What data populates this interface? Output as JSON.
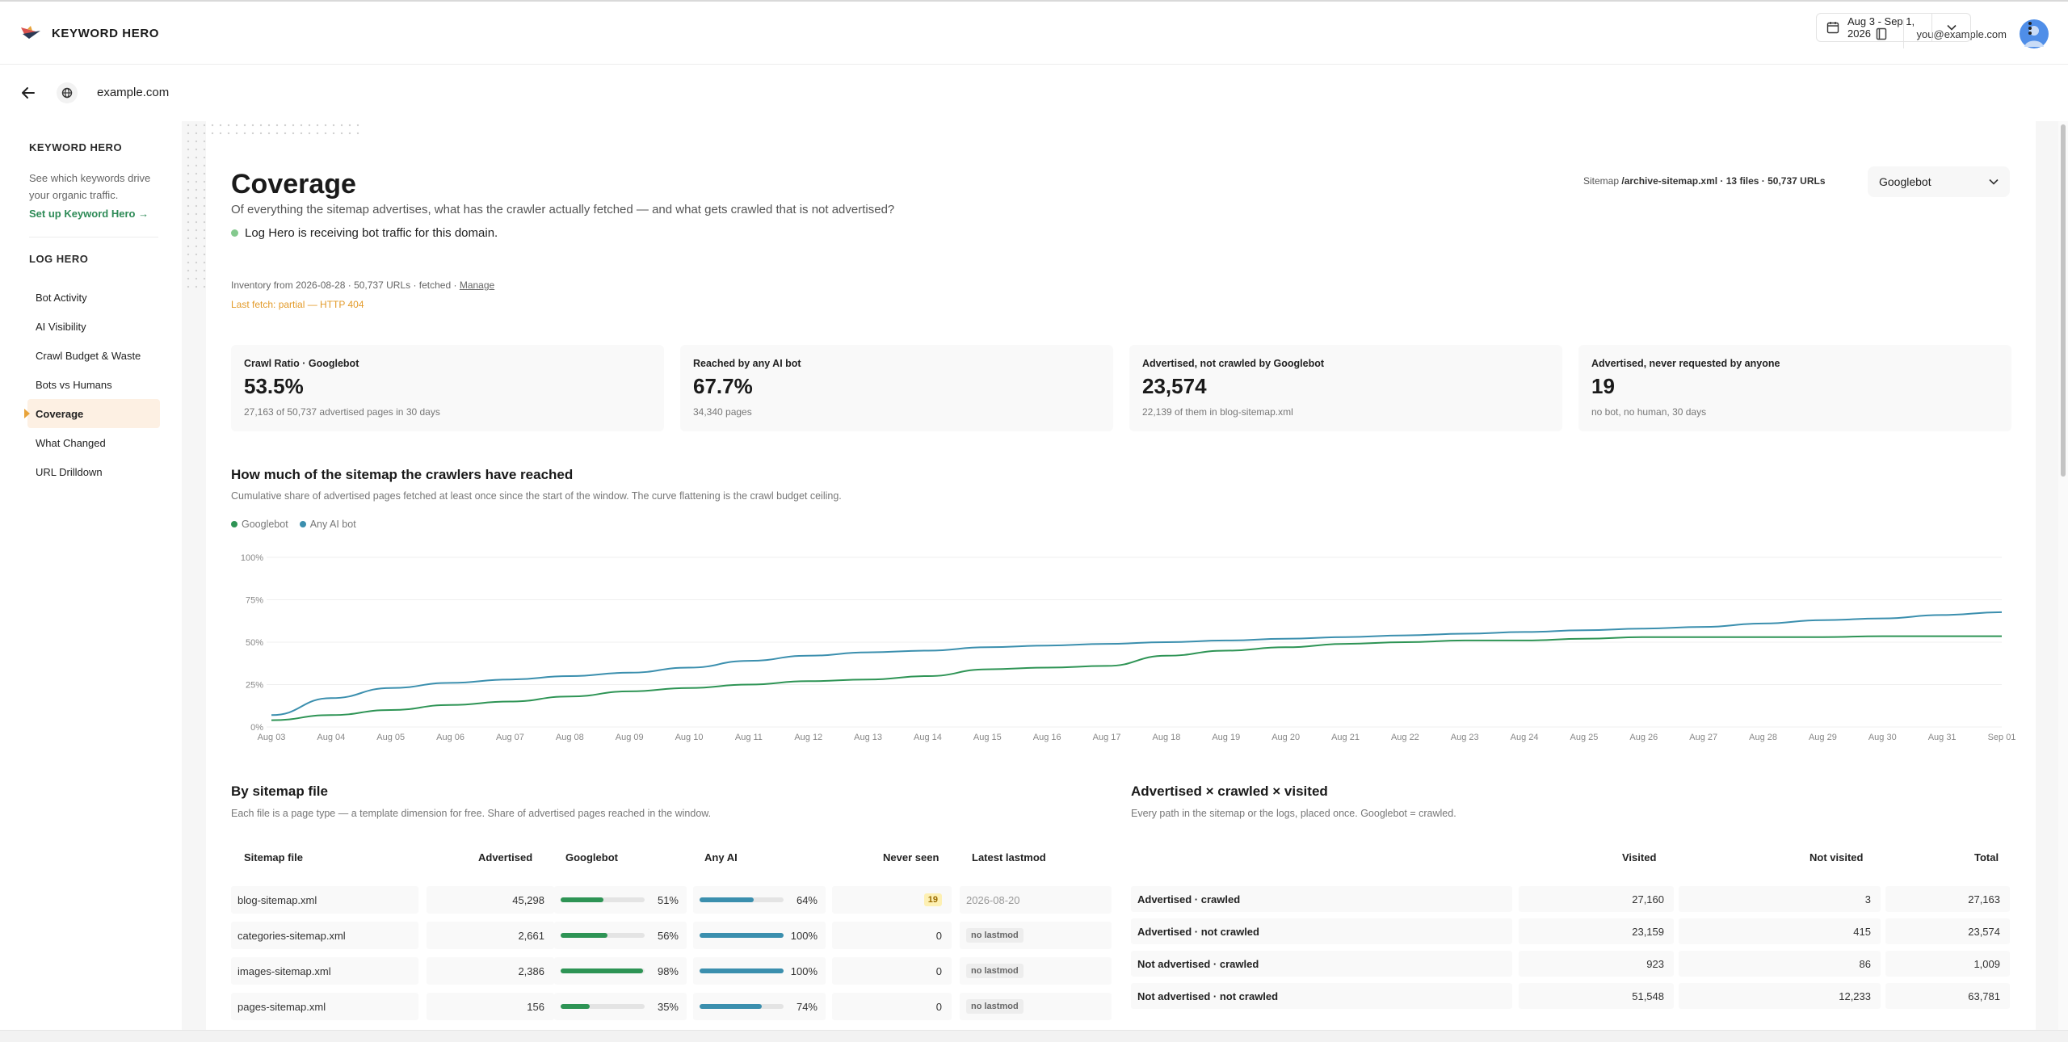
{
  "app": {
    "brand": "KEYWORD HERO",
    "user_email": "you@example.com",
    "domain": "example.com",
    "date_range": "Aug 3 - Sep 1, 2026"
  },
  "sidebar": {
    "section1_title": "KEYWORD HERO",
    "section1_desc": "See which keywords drive your organic traffic.",
    "section1_link": "Set up Keyword Hero →",
    "section2_title": "LOG HERO",
    "items": [
      {
        "label": "Bot Activity"
      },
      {
        "label": "AI Visibility"
      },
      {
        "label": "Crawl Budget & Waste"
      },
      {
        "label": "Bots vs Humans"
      },
      {
        "label": "Coverage"
      },
      {
        "label": "What Changed"
      },
      {
        "label": "URL Drilldown"
      }
    ],
    "active_index": 4
  },
  "page": {
    "title": "Coverage",
    "subtitle": "Of everything the sitemap advertises, what has the crawler actually fetched — and what gets crawled that is not advertised?",
    "status": "Log Hero is receiving bot traffic for this domain.",
    "sitemap_prefix": "Sitemap",
    "sitemap_name": "/archive-sitemap.xml · 13 files · 50,737 URLs",
    "bot_select": "Googlebot",
    "inventory_text": "Inventory from 2026-08-28 · 50,737 URLs · fetched ·",
    "inventory_manage": "Manage",
    "fetch_warning": "Last fetch: partial — HTTP 404"
  },
  "kpis": [
    {
      "label": "Crawl Ratio · Googlebot",
      "value": "53.5%",
      "sub": "27,163 of 50,737 advertised pages in 30 days"
    },
    {
      "label": "Reached by any AI bot",
      "value": "67.7%",
      "sub": "34,340 pages"
    },
    {
      "label": "Advertised, not crawled by Googlebot",
      "value": "23,574",
      "sub": "22,139 of them in blog-sitemap.xml"
    },
    {
      "label": "Advertised, never requested by anyone",
      "value": "19",
      "sub": "no bot, no human, 30 days"
    }
  ],
  "chart_section": {
    "title": "How much of the sitemap the crawlers have reached",
    "desc": "Cumulative share of advertised pages fetched at least once since the start of the window. The curve flattening is the crawl budget ceiling."
  },
  "chart_data": {
    "type": "line",
    "x": [
      "Aug 03",
      "Aug 04",
      "Aug 05",
      "Aug 06",
      "Aug 07",
      "Aug 08",
      "Aug 09",
      "Aug 10",
      "Aug 11",
      "Aug 12",
      "Aug 13",
      "Aug 14",
      "Aug 15",
      "Aug 16",
      "Aug 17",
      "Aug 18",
      "Aug 19",
      "Aug 20",
      "Aug 21",
      "Aug 22",
      "Aug 23",
      "Aug 24",
      "Aug 25",
      "Aug 26",
      "Aug 27",
      "Aug 28",
      "Aug 29",
      "Aug 30",
      "Aug 31",
      "Sep 01"
    ],
    "yticks": [
      "0%",
      "25%",
      "50%",
      "75%",
      "100%"
    ],
    "ylim": [
      0,
      100
    ],
    "grid": true,
    "legend_position": "top-left",
    "series": [
      {
        "name": "Googlebot",
        "color": "#2e9455",
        "values": [
          4,
          7,
          10,
          13,
          15,
          18,
          21,
          23,
          25,
          27,
          28,
          30,
          34,
          35,
          36,
          42,
          45,
          47,
          49,
          50,
          51,
          51,
          52,
          53,
          53,
          53,
          53,
          53.5,
          53.5,
          53.5
        ]
      },
      {
        "name": "Any AI bot",
        "color": "#3b8fae",
        "values": [
          7,
          17,
          23,
          26,
          28,
          30,
          32,
          35,
          39,
          42,
          44,
          45,
          47,
          48,
          49,
          50,
          51,
          52,
          53,
          54,
          55,
          56,
          57,
          58,
          59,
          61,
          63,
          64,
          66,
          67.7
        ]
      }
    ]
  },
  "sitemap_table": {
    "title": "By sitemap file",
    "desc": "Each file is a page type — a template dimension for free. Share of advertised pages reached in the window.",
    "headers": {
      "file": "Sitemap file",
      "advertised": "Advertised",
      "googlebot": "Googlebot",
      "any_ai": "Any AI",
      "never_seen": "Never seen",
      "lastmod": "Latest lastmod"
    },
    "rows": [
      {
        "file": "blog-sitemap.xml",
        "advertised": "45,298",
        "googlebot_pct": 51,
        "googlebot_label": "51%",
        "ai_pct": 64,
        "ai_label": "64%",
        "never_seen": "19",
        "never_highlight": true,
        "lastmod": "2026-08-20",
        "lastmod_badge": false
      },
      {
        "file": "categories-sitemap.xml",
        "advertised": "2,661",
        "googlebot_pct": 56,
        "googlebot_label": "56%",
        "ai_pct": 100,
        "ai_label": "100%",
        "never_seen": "0",
        "never_highlight": false,
        "lastmod": "no lastmod",
        "lastmod_badge": true
      },
      {
        "file": "images-sitemap.xml",
        "advertised": "2,386",
        "googlebot_pct": 98,
        "googlebot_label": "98%",
        "ai_pct": 100,
        "ai_label": "100%",
        "never_seen": "0",
        "never_highlight": false,
        "lastmod": "no lastmod",
        "lastmod_badge": true
      },
      {
        "file": "pages-sitemap.xml",
        "advertised": "156",
        "googlebot_pct": 35,
        "googlebot_label": "35%",
        "ai_pct": 74,
        "ai_label": "74%",
        "never_seen": "0",
        "never_highlight": false,
        "lastmod": "no lastmod",
        "lastmod_badge": true
      }
    ],
    "colors": {
      "googlebot": "#2e9455",
      "ai": "#3b8fae"
    }
  },
  "matrix_table": {
    "title": "Advertised × crawled × visited",
    "desc": "Every path in the sitemap or the logs, placed once. Googlebot = crawled.",
    "headers": {
      "visited": "Visited",
      "not_visited": "Not visited",
      "total": "Total"
    },
    "rows": [
      {
        "label": "Advertised · crawled",
        "visited": "27,160",
        "not_visited": "3",
        "total": "27,163"
      },
      {
        "label": "Advertised · not crawled",
        "visited": "23,159",
        "not_visited": "415",
        "total": "23,574"
      },
      {
        "label": "Not advertised · crawled",
        "visited": "923",
        "not_visited": "86",
        "total": "1,009"
      },
      {
        "label": "Not advertised · not crawled",
        "visited": "51,548",
        "not_visited": "12,233",
        "total": "63,781"
      }
    ]
  }
}
